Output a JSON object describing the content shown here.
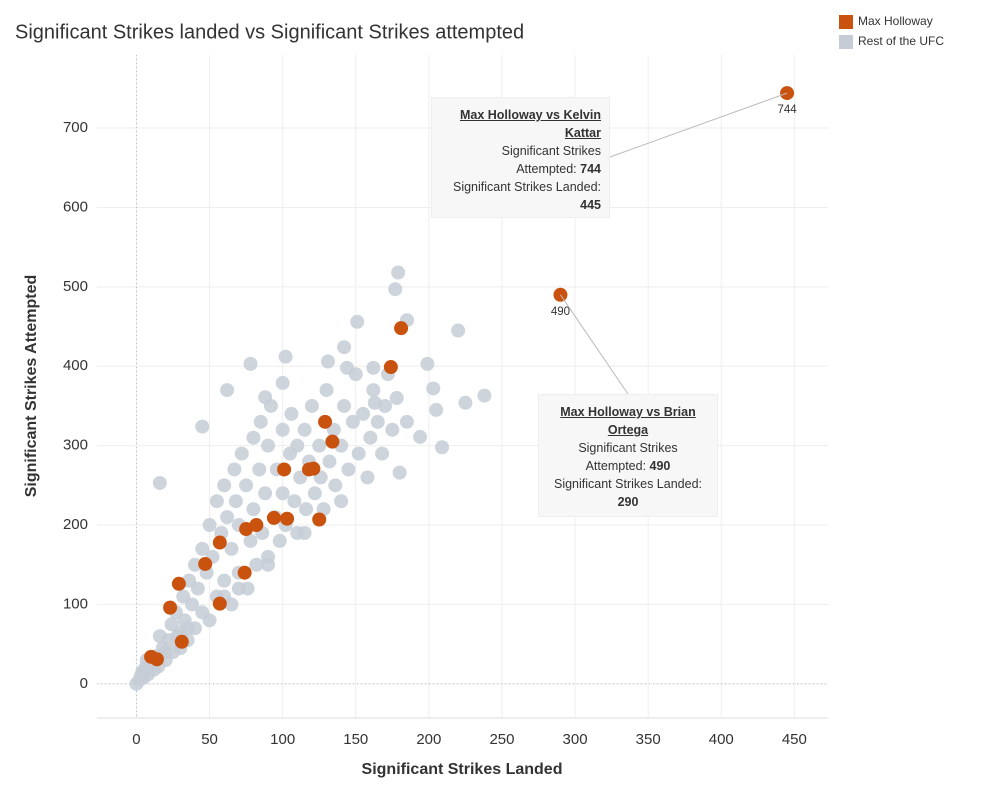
{
  "chart_data": {
    "type": "scatter",
    "title": "Significant Strikes landed vs Significant Strikes attempted",
    "x_label": "Significant Strikes Landed",
    "y_label": "Significant Strikes Attempted",
    "xlim": [
      -27,
      473
    ],
    "ylim": [
      -43,
      792
    ],
    "xticks": [
      0,
      50,
      100,
      150,
      200,
      250,
      300,
      350,
      400,
      450
    ],
    "yticks": [
      0,
      100,
      200,
      300,
      400,
      500,
      600,
      700
    ],
    "grid": true,
    "legend": "top-right",
    "series": [
      {
        "name": "Max Holloway",
        "color": "#c9520e",
        "x": [
          445,
          290,
          181,
          174,
          129,
          134,
          101,
          118,
          121,
          94,
          103,
          125,
          82,
          75,
          57,
          47,
          74,
          29,
          23,
          57,
          31,
          10,
          14
        ],
        "y": [
          744,
          490,
          448,
          399,
          330,
          305,
          270,
          270,
          271,
          209,
          208,
          207,
          200,
          195,
          178,
          151,
          140,
          126,
          96,
          101,
          53,
          34,
          31
        ]
      },
      {
        "name": "Rest of the UFC",
        "color": "#c5ccd6",
        "x": [
          0,
          2,
          3,
          5,
          4,
          6,
          8,
          10,
          7,
          12,
          14,
          15,
          18,
          16,
          20,
          22,
          25,
          24,
          27,
          28,
          30,
          32,
          33,
          35,
          36,
          38,
          40,
          40,
          42,
          45,
          45,
          48,
          50,
          50,
          52,
          55,
          55,
          58,
          60,
          60,
          62,
          65,
          65,
          67,
          68,
          70,
          70,
          72,
          75,
          76,
          78,
          80,
          80,
          82,
          84,
          85,
          86,
          88,
          90,
          90,
          92,
          95,
          96,
          98,
          100,
          100,
          102,
          105,
          106,
          108,
          110,
          110,
          112,
          115,
          116,
          118,
          120,
          122,
          125,
          126,
          128,
          130,
          132,
          135,
          136,
          140,
          142,
          145,
          148,
          150,
          152,
          155,
          158,
          160,
          162,
          165,
          168,
          170,
          172,
          175,
          178,
          185,
          179,
          177,
          185,
          151,
          220,
          142,
          102,
          78,
          199,
          238,
          225,
          205,
          194,
          209,
          180,
          16,
          45,
          62,
          88,
          100,
          131,
          163,
          144,
          162,
          203,
          20,
          35,
          12,
          60,
          90,
          115,
          140,
          30,
          70
        ],
        "y": [
          0,
          5,
          10,
          8,
          15,
          20,
          12,
          25,
          30,
          18,
          35,
          22,
          45,
          60,
          30,
          55,
          40,
          75,
          90,
          60,
          45,
          110,
          80,
          55,
          130,
          100,
          70,
          150,
          120,
          90,
          170,
          140,
          80,
          200,
          160,
          110,
          230,
          190,
          130,
          250,
          210,
          100,
          170,
          270,
          230,
          140,
          200,
          290,
          250,
          120,
          180,
          310,
          220,
          150,
          270,
          330,
          190,
          240,
          160,
          300,
          350,
          210,
          270,
          180,
          320,
          240,
          200,
          290,
          340,
          230,
          190,
          300,
          260,
          320,
          220,
          280,
          350,
          240,
          300,
          260,
          220,
          370,
          280,
          320,
          250,
          300,
          350,
          270,
          330,
          390,
          290,
          340,
          260,
          310,
          370,
          330,
          290,
          350,
          390,
          320,
          360,
          330,
          518,
          497,
          458,
          456,
          445,
          424,
          412,
          403,
          403,
          363,
          354,
          345,
          311,
          298,
          266,
          253,
          324,
          370,
          361,
          379,
          406,
          354,
          398,
          398,
          372,
          40,
          70,
          28,
          110,
          150,
          190,
          230,
          65,
          120
        ]
      }
    ],
    "annotations": [
      {
        "title": "Max Holloway vs Kelvin Kattar",
        "attempted_label": "Significant Strikes Attempted:",
        "landed_label": "Significant Strikes Landed:"
      },
      {
        "title": "Max Holloway vs Brian Ortega",
        "attempted_label": "Significant Strikes Attempted:",
        "landed_label": "Significant Strikes Landed:"
      }
    ]
  }
}
